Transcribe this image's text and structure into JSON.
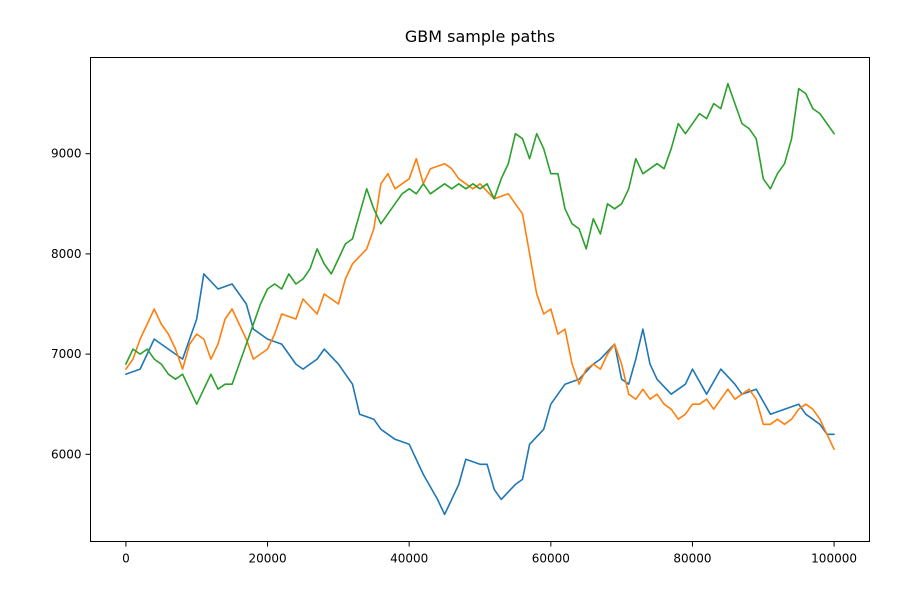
{
  "chart_data": {
    "type": "line",
    "title": "GBM sample paths",
    "xlabel": "",
    "ylabel": "",
    "xlim": [
      -5000,
      105000
    ],
    "ylim": [
      5130,
      9960
    ],
    "x_ticks": [
      0,
      20000,
      40000,
      60000,
      80000,
      100000
    ],
    "x_tick_labels": [
      "0",
      "20000",
      "40000",
      "60000",
      "80000",
      "100000"
    ],
    "y_ticks": [
      6000,
      7000,
      8000,
      9000
    ],
    "y_tick_labels": [
      "6000",
      "7000",
      "8000",
      "9000"
    ],
    "grid": false,
    "legend": "none",
    "series": [
      {
        "color": "#1f77b4",
        "points": [
          [
            0,
            6800
          ],
          [
            2000,
            6850
          ],
          [
            4000,
            7150
          ],
          [
            6000,
            7050
          ],
          [
            8000,
            6950
          ],
          [
            10000,
            7350
          ],
          [
            11000,
            7800
          ],
          [
            13000,
            7650
          ],
          [
            15000,
            7700
          ],
          [
            17000,
            7500
          ],
          [
            18000,
            7250
          ],
          [
            20000,
            7150
          ],
          [
            22000,
            7100
          ],
          [
            24000,
            6900
          ],
          [
            25000,
            6850
          ],
          [
            27000,
            6950
          ],
          [
            28000,
            7050
          ],
          [
            30000,
            6900
          ],
          [
            32000,
            6700
          ],
          [
            33000,
            6400
          ],
          [
            35000,
            6350
          ],
          [
            36000,
            6250
          ],
          [
            38000,
            6150
          ],
          [
            40000,
            6100
          ],
          [
            42000,
            5800
          ],
          [
            44000,
            5550
          ],
          [
            45000,
            5400
          ],
          [
            47000,
            5700
          ],
          [
            48000,
            5950
          ],
          [
            50000,
            5900
          ],
          [
            51000,
            5900
          ],
          [
            52000,
            5650
          ],
          [
            53000,
            5550
          ],
          [
            55000,
            5700
          ],
          [
            56000,
            5750
          ],
          [
            57000,
            6100
          ],
          [
            59000,
            6250
          ],
          [
            60000,
            6500
          ],
          [
            62000,
            6700
          ],
          [
            64000,
            6750
          ],
          [
            66000,
            6900
          ],
          [
            67000,
            6950
          ],
          [
            69000,
            7100
          ],
          [
            70000,
            6750
          ],
          [
            71000,
            6700
          ],
          [
            72000,
            6950
          ],
          [
            73000,
            7250
          ],
          [
            74000,
            6900
          ],
          [
            75000,
            6750
          ],
          [
            77000,
            6600
          ],
          [
            79000,
            6700
          ],
          [
            80000,
            6850
          ],
          [
            82000,
            6600
          ],
          [
            84000,
            6850
          ],
          [
            86000,
            6700
          ],
          [
            87000,
            6600
          ],
          [
            89000,
            6650
          ],
          [
            91000,
            6400
          ],
          [
            93000,
            6450
          ],
          [
            95000,
            6500
          ],
          [
            96000,
            6400
          ],
          [
            98000,
            6300
          ],
          [
            99000,
            6200
          ],
          [
            100000,
            6200
          ]
        ]
      },
      {
        "color": "#ff7f0e",
        "points": [
          [
            0,
            6850
          ],
          [
            1000,
            6950
          ],
          [
            2000,
            7150
          ],
          [
            3000,
            7300
          ],
          [
            4000,
            7450
          ],
          [
            5000,
            7300
          ],
          [
            6000,
            7200
          ],
          [
            7000,
            7050
          ],
          [
            8000,
            6850
          ],
          [
            9000,
            7100
          ],
          [
            10000,
            7200
          ],
          [
            11000,
            7150
          ],
          [
            12000,
            6950
          ],
          [
            13000,
            7100
          ],
          [
            14000,
            7350
          ],
          [
            15000,
            7450
          ],
          [
            16000,
            7300
          ],
          [
            17000,
            7150
          ],
          [
            18000,
            6950
          ],
          [
            20000,
            7050
          ],
          [
            21000,
            7200
          ],
          [
            22000,
            7400
          ],
          [
            24000,
            7350
          ],
          [
            25000,
            7550
          ],
          [
            27000,
            7400
          ],
          [
            28000,
            7600
          ],
          [
            30000,
            7500
          ],
          [
            31000,
            7750
          ],
          [
            32000,
            7900
          ],
          [
            34000,
            8050
          ],
          [
            35000,
            8250
          ],
          [
            36000,
            8700
          ],
          [
            37000,
            8800
          ],
          [
            38000,
            8650
          ],
          [
            40000,
            8750
          ],
          [
            41000,
            8950
          ],
          [
            42000,
            8700
          ],
          [
            43000,
            8850
          ],
          [
            45000,
            8900
          ],
          [
            46000,
            8850
          ],
          [
            47000,
            8750
          ],
          [
            49000,
            8650
          ],
          [
            50000,
            8700
          ],
          [
            52000,
            8550
          ],
          [
            54000,
            8600
          ],
          [
            56000,
            8400
          ],
          [
            57000,
            8000
          ],
          [
            58000,
            7600
          ],
          [
            59000,
            7400
          ],
          [
            60000,
            7450
          ],
          [
            61000,
            7200
          ],
          [
            62000,
            7250
          ],
          [
            63000,
            6900
          ],
          [
            64000,
            6700
          ],
          [
            65000,
            6850
          ],
          [
            66000,
            6900
          ],
          [
            67000,
            6850
          ],
          [
            68000,
            7000
          ],
          [
            69000,
            7100
          ],
          [
            70000,
            6900
          ],
          [
            71000,
            6600
          ],
          [
            72000,
            6550
          ],
          [
            73000,
            6650
          ],
          [
            74000,
            6550
          ],
          [
            75000,
            6600
          ],
          [
            76000,
            6500
          ],
          [
            77000,
            6450
          ],
          [
            78000,
            6350
          ],
          [
            79000,
            6400
          ],
          [
            80000,
            6500
          ],
          [
            81000,
            6500
          ],
          [
            82000,
            6550
          ],
          [
            83000,
            6450
          ],
          [
            84000,
            6550
          ],
          [
            85000,
            6650
          ],
          [
            86000,
            6550
          ],
          [
            87000,
            6600
          ],
          [
            88000,
            6650
          ],
          [
            89000,
            6550
          ],
          [
            90000,
            6300
          ],
          [
            91000,
            6300
          ],
          [
            92000,
            6350
          ],
          [
            93000,
            6300
          ],
          [
            94000,
            6350
          ],
          [
            95000,
            6450
          ],
          [
            96000,
            6500
          ],
          [
            97000,
            6450
          ],
          [
            98000,
            6350
          ],
          [
            99000,
            6200
          ],
          [
            100000,
            6050
          ]
        ]
      },
      {
        "color": "#2ca02c",
        "points": [
          [
            0,
            6900
          ],
          [
            1000,
            7050
          ],
          [
            2000,
            7000
          ],
          [
            3000,
            7050
          ],
          [
            4000,
            6950
          ],
          [
            5000,
            6900
          ],
          [
            6000,
            6800
          ],
          [
            7000,
            6750
          ],
          [
            8000,
            6800
          ],
          [
            9000,
            6650
          ],
          [
            10000,
            6500
          ],
          [
            11000,
            6650
          ],
          [
            12000,
            6800
          ],
          [
            13000,
            6650
          ],
          [
            14000,
            6700
          ],
          [
            15000,
            6700
          ],
          [
            16000,
            6900
          ],
          [
            17000,
            7100
          ],
          [
            18000,
            7300
          ],
          [
            19000,
            7500
          ],
          [
            20000,
            7650
          ],
          [
            21000,
            7700
          ],
          [
            22000,
            7650
          ],
          [
            23000,
            7800
          ],
          [
            24000,
            7700
          ],
          [
            25000,
            7750
          ],
          [
            26000,
            7850
          ],
          [
            27000,
            8050
          ],
          [
            28000,
            7900
          ],
          [
            29000,
            7800
          ],
          [
            30000,
            7950
          ],
          [
            31000,
            8100
          ],
          [
            32000,
            8150
          ],
          [
            33000,
            8400
          ],
          [
            34000,
            8650
          ],
          [
            35000,
            8450
          ],
          [
            36000,
            8300
          ],
          [
            37000,
            8400
          ],
          [
            38000,
            8500
          ],
          [
            39000,
            8600
          ],
          [
            40000,
            8650
          ],
          [
            41000,
            8600
          ],
          [
            42000,
            8700
          ],
          [
            43000,
            8600
          ],
          [
            44000,
            8650
          ],
          [
            45000,
            8700
          ],
          [
            46000,
            8650
          ],
          [
            47000,
            8700
          ],
          [
            48000,
            8650
          ],
          [
            49000,
            8700
          ],
          [
            50000,
            8650
          ],
          [
            51000,
            8700
          ],
          [
            52000,
            8550
          ],
          [
            53000,
            8750
          ],
          [
            54000,
            8900
          ],
          [
            55000,
            9200
          ],
          [
            56000,
            9150
          ],
          [
            57000,
            8950
          ],
          [
            58000,
            9200
          ],
          [
            59000,
            9050
          ],
          [
            60000,
            8800
          ],
          [
            61000,
            8800
          ],
          [
            62000,
            8450
          ],
          [
            63000,
            8300
          ],
          [
            64000,
            8250
          ],
          [
            65000,
            8050
          ],
          [
            66000,
            8350
          ],
          [
            67000,
            8200
          ],
          [
            68000,
            8500
          ],
          [
            69000,
            8450
          ],
          [
            70000,
            8500
          ],
          [
            71000,
            8650
          ],
          [
            72000,
            8950
          ],
          [
            73000,
            8800
          ],
          [
            74000,
            8850
          ],
          [
            75000,
            8900
          ],
          [
            76000,
            8850
          ],
          [
            77000,
            9050
          ],
          [
            78000,
            9300
          ],
          [
            79000,
            9200
          ],
          [
            80000,
            9300
          ],
          [
            81000,
            9400
          ],
          [
            82000,
            9350
          ],
          [
            83000,
            9500
          ],
          [
            84000,
            9450
          ],
          [
            85000,
            9700
          ],
          [
            86000,
            9500
          ],
          [
            87000,
            9300
          ],
          [
            88000,
            9250
          ],
          [
            89000,
            9150
          ],
          [
            90000,
            8750
          ],
          [
            91000,
            8650
          ],
          [
            92000,
            8800
          ],
          [
            93000,
            8900
          ],
          [
            94000,
            9150
          ],
          [
            95000,
            9650
          ],
          [
            96000,
            9600
          ],
          [
            97000,
            9450
          ],
          [
            98000,
            9400
          ],
          [
            99000,
            9300
          ],
          [
            100000,
            9200
          ]
        ]
      }
    ]
  }
}
